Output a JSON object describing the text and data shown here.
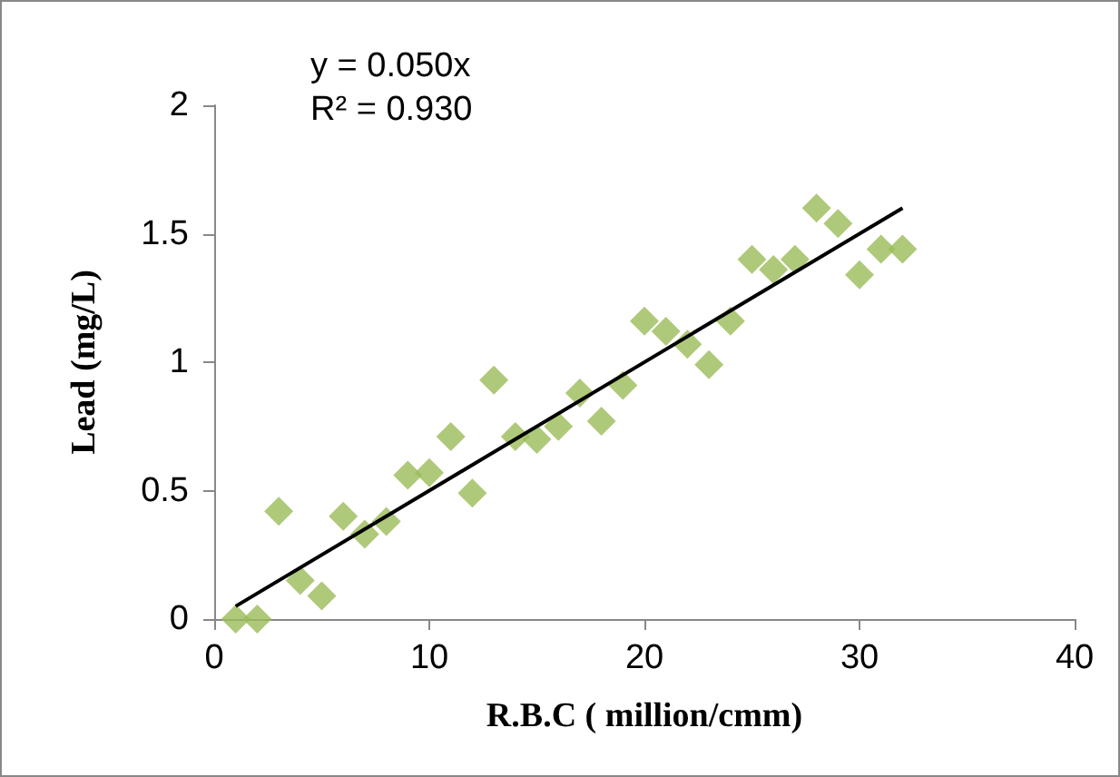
{
  "chart_data": {
    "type": "scatter",
    "xlabel": "R.B.C ( million/cmm)",
    "ylabel": "Lead (mg/L)",
    "annotations": [
      "y = 0.050x",
      "R² = 0.930"
    ],
    "xlim": [
      0,
      40
    ],
    "xticks": [
      0,
      10,
      20,
      30,
      40
    ],
    "ylim": [
      0,
      2
    ],
    "yticks": [
      0,
      0.5,
      1,
      1.5,
      2
    ],
    "grid": false,
    "series": [
      {
        "color": "#9bbb59",
        "marker": "diamond",
        "x": [
          1,
          2,
          3,
          4,
          5,
          6,
          7,
          8,
          9,
          10,
          11,
          12,
          13,
          14,
          15,
          16,
          17,
          18,
          19,
          20,
          21,
          22,
          23,
          24,
          25,
          26,
          27,
          28,
          29,
          30,
          31,
          32
        ],
        "values": [
          0,
          0,
          0.42,
          0.15,
          0.09,
          0.4,
          0.33,
          0.38,
          0.56,
          0.57,
          0.71,
          0.49,
          0.93,
          0.71,
          0.7,
          0.75,
          0.88,
          0.77,
          0.91,
          1.16,
          1.12,
          1.07,
          0.99,
          1.16,
          1.4,
          1.36,
          1.4,
          1.6,
          1.54,
          1.34,
          1.44,
          1.44
        ]
      },
      {
        "type": "line",
        "color": "#000000",
        "x": [
          1,
          32
        ],
        "values": [
          0.05,
          1.6
        ]
      }
    ]
  }
}
